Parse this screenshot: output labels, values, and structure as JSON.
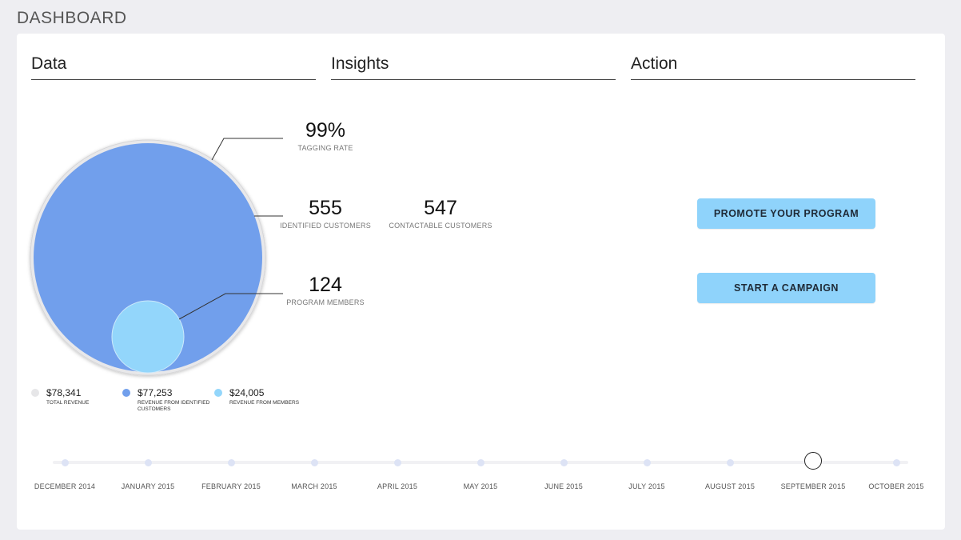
{
  "page": {
    "title": "DASHBOARD"
  },
  "columns": {
    "data": "Data",
    "insights": "Insights",
    "action": "Action"
  },
  "stats": {
    "tagging": {
      "value": "99%",
      "label": "TAGGING RATE"
    },
    "identified": {
      "value": "555",
      "label": "IDENTIFIED CUSTOMERS"
    },
    "contactable": {
      "value": "547",
      "label": "CONTACTABLE CUSTOMERS"
    },
    "members": {
      "value": "124",
      "label": "PROGRAM MEMBERS"
    }
  },
  "legend": [
    {
      "value": "$78,341",
      "label": "TOTAL REVENUE",
      "color": "#e6e6e8"
    },
    {
      "value": "$77,253",
      "label": "REVENUE FROM IDENTIFIED CUSTOMERS",
      "color": "#719fec"
    },
    {
      "value": "$24,005",
      "label": "REVENUE FROM MEMBERS",
      "color": "#93d6fb"
    }
  ],
  "actions": {
    "promote": "PROMOTE YOUR PROGRAM",
    "campaign": "START A CAMPAIGN"
  },
  "timeline": {
    "months": [
      "DECEMBER 2014",
      "JANUARY 2015",
      "FEBRUARY 2015",
      "MARCH 2015",
      "APRIL 2015",
      "MAY 2015",
      "JUNE 2015",
      "JULY 2015",
      "AUGUST 2015",
      "SEPTEMBER 2015",
      "OCTOBER 2015"
    ],
    "selected": "SEPTEMBER 2015"
  },
  "colors": {
    "total_revenue": "#e6e6e8",
    "identified_revenue": "#719fec",
    "member_revenue": "#93d6fb",
    "button": "#8fd3fb"
  }
}
